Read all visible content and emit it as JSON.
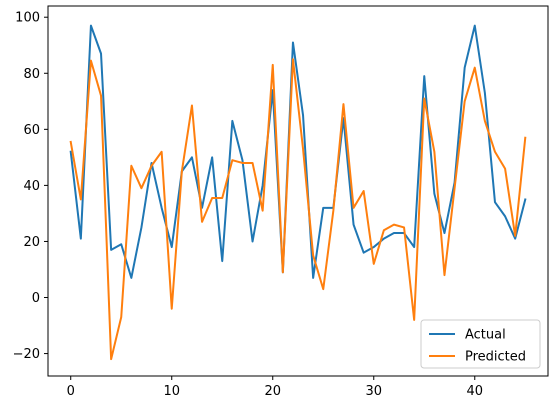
{
  "chart_data": {
    "type": "line",
    "title": "",
    "xlabel": "",
    "ylabel": "",
    "xlim": [
      -2.25,
      47.25
    ],
    "ylim": [
      -28,
      104
    ],
    "xticks": [
      0,
      10,
      20,
      30,
      40
    ],
    "yticks": [
      -20,
      0,
      20,
      40,
      60,
      80,
      100
    ],
    "grid": false,
    "legend_position": "lower right",
    "x": [
      0,
      1,
      2,
      3,
      4,
      5,
      6,
      7,
      8,
      9,
      10,
      11,
      12,
      13,
      14,
      15,
      16,
      17,
      18,
      19,
      20,
      21,
      22,
      23,
      24,
      25,
      26,
      27,
      28,
      29,
      30,
      31,
      32,
      33,
      34,
      35,
      36,
      37,
      38,
      39,
      40,
      41,
      42,
      43,
      44,
      45
    ],
    "series": [
      {
        "name": "Actual",
        "color": "#1f77b4",
        "values": [
          52,
          21,
          97,
          87,
          17,
          19,
          7,
          25,
          48,
          32,
          18,
          45,
          50,
          32,
          50,
          13,
          63,
          49,
          20,
          40,
          74,
          9,
          91,
          65,
          7,
          32,
          32,
          64,
          26,
          16,
          18,
          21,
          23,
          23,
          18,
          79,
          37,
          23,
          41,
          82,
          97,
          73,
          34,
          29,
          21,
          35
        ]
      },
      {
        "name": "Predicted",
        "color": "#ff7f0e",
        "values": [
          55.5,
          35,
          84.5,
          72,
          -22,
          -7,
          47,
          39,
          47,
          52,
          -4,
          45,
          68.5,
          27,
          35.5,
          35.5,
          49,
          48,
          48,
          31,
          83,
          9,
          85,
          53,
          15,
          3,
          31,
          69,
          32,
          38,
          12,
          24,
          26,
          25,
          -8,
          71,
          52,
          8,
          39,
          70,
          82,
          63,
          52,
          46,
          22,
          57
        ]
      }
    ]
  }
}
